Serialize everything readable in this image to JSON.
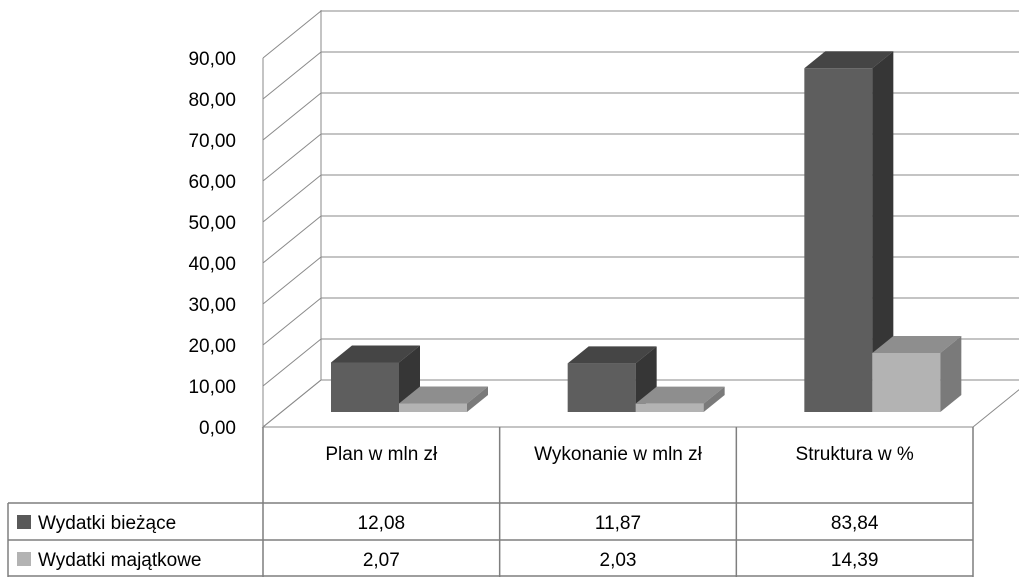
{
  "chart_data": {
    "type": "bar",
    "title": "",
    "xlabel": "",
    "ylabel": "",
    "ylim": [
      0,
      90
    ],
    "y_ticks": [
      "0,00",
      "10,00",
      "20,00",
      "30,00",
      "40,00",
      "50,00",
      "60,00",
      "70,00",
      "80,00",
      "90,00"
    ],
    "categories": [
      "Plan w mln zł",
      "Wykonanie w mln zł",
      "Struktura w %"
    ],
    "series": [
      {
        "name": "Wydatki bieżące",
        "values": [
          12.08,
          11.87,
          83.84
        ],
        "labels": [
          "12,08",
          "11,87",
          "83,84"
        ],
        "color": "#595959"
      },
      {
        "name": "Wydatki majątkowe",
        "values": [
          2.07,
          2.03,
          14.39
        ],
        "labels": [
          "2,07",
          "2,03",
          "14,39"
        ],
        "color": "#b3b3b3"
      }
    ],
    "grid": true,
    "legend": "data-table"
  }
}
